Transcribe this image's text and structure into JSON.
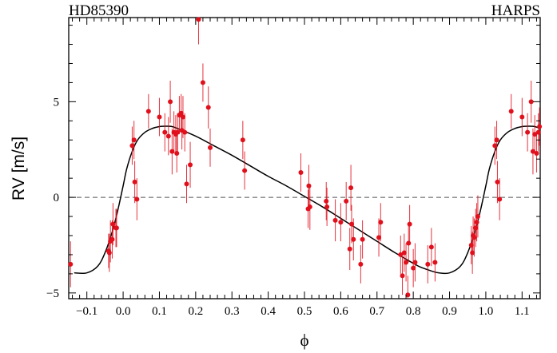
{
  "chart_data": {
    "type": "scatter",
    "title_left": "HD85390",
    "title_right": "HARPS",
    "xlabel": "ϕ",
    "ylabel": "RV [m/s]",
    "xlim": [
      -0.15,
      1.15
    ],
    "ylim": [
      -5.3,
      9.4
    ],
    "x_ticks": [
      -0.1,
      0.0,
      0.1,
      0.2,
      0.3,
      0.4,
      0.5,
      0.6,
      0.7,
      0.8,
      0.9,
      1.0,
      1.1
    ],
    "x_tick_labels": [
      "−0.1",
      "0.0",
      "0.1",
      "0.2",
      "0.3",
      "0.4",
      "0.5",
      "0.6",
      "0.7",
      "0.8",
      "0.9",
      "1.0",
      "1.1"
    ],
    "y_ticks": [
      -5,
      0,
      5
    ],
    "y_tick_labels": [
      "−5",
      "0",
      "5"
    ],
    "reference_line": {
      "y": 0,
      "style": "dashed"
    },
    "model_curve": {
      "name": "Keplerian fit",
      "x": [
        -0.135,
        -0.1,
        -0.07,
        -0.05,
        -0.03,
        -0.015,
        0.0,
        0.01,
        0.025,
        0.04,
        0.06,
        0.08,
        0.1,
        0.12,
        0.135,
        0.15,
        0.2,
        0.25,
        0.3,
        0.35,
        0.4,
        0.45,
        0.5,
        0.55,
        0.6,
        0.65,
        0.7,
        0.75,
        0.8,
        0.82,
        0.85,
        0.87,
        0.9,
        0.93,
        0.95,
        0.97,
        0.985,
        1.0,
        1.01,
        1.025,
        1.04,
        1.06,
        1.08,
        1.1,
        1.12,
        1.135,
        1.15
      ],
      "y": [
        -3.95,
        -3.95,
        -3.6,
        -2.9,
        -1.8,
        -0.7,
        0.6,
        1.5,
        2.4,
        3.0,
        3.4,
        3.6,
        3.7,
        3.72,
        3.7,
        3.6,
        3.2,
        2.7,
        2.2,
        1.65,
        1.1,
        0.6,
        0.05,
        -0.5,
        -1.1,
        -1.7,
        -2.3,
        -2.9,
        -3.45,
        -3.65,
        -3.85,
        -3.95,
        -3.95,
        -3.6,
        -2.9,
        -1.8,
        -0.7,
        0.6,
        1.5,
        2.4,
        3.0,
        3.4,
        3.6,
        3.7,
        3.72,
        3.7,
        3.6
      ]
    },
    "series": [
      {
        "name": "HARPS RV",
        "color": "#e0101c",
        "x": [
          -0.145,
          -0.04,
          -0.038,
          -0.035,
          -0.03,
          -0.028,
          -0.02,
          -0.018,
          0.025,
          0.03,
          0.032,
          0.038,
          0.07,
          0.1,
          0.115,
          0.125,
          0.13,
          0.135,
          0.14,
          0.145,
          0.148,
          0.15,
          0.155,
          0.16,
          0.162,
          0.165,
          0.17,
          0.175,
          0.185,
          0.208,
          0.22,
          0.235,
          0.24,
          0.33,
          0.335,
          0.49,
          0.51,
          0.512,
          0.515,
          0.56,
          0.562,
          0.585,
          0.6,
          0.615,
          0.625,
          0.628,
          0.63,
          0.635,
          0.655,
          0.66,
          0.705,
          0.71,
          0.765,
          0.77,
          0.775,
          0.78,
          0.785,
          0.787,
          0.79,
          0.8,
          0.805,
          0.84,
          0.85,
          0.86,
          0.96,
          0.963,
          0.965,
          0.968,
          0.972,
          0.975,
          0.978,
          1.025,
          1.03,
          1.032,
          1.038,
          1.07,
          1.1,
          1.115,
          1.125,
          1.13,
          1.135,
          1.14,
          1.145,
          1.148
        ],
        "y": [
          -3.5,
          -2.8,
          -2.9,
          -2.3,
          -2.2,
          -1.4,
          -1.6,
          -1.6,
          2.7,
          3.0,
          0.8,
          -0.1,
          4.5,
          4.2,
          3.4,
          3.2,
          5.0,
          2.4,
          3.4,
          3.3,
          2.3,
          3.4,
          4.3,
          4.4,
          3.5,
          4.2,
          3.4,
          0.7,
          1.7,
          9.3,
          6.0,
          4.7,
          2.6,
          3.0,
          1.4,
          1.3,
          -0.6,
          0.6,
          -0.5,
          -0.2,
          -0.5,
          -1.2,
          -1.3,
          -0.2,
          -2.7,
          0.5,
          -1.4,
          -2.2,
          -3.5,
          -2.2,
          -2.1,
          -1.3,
          -3.0,
          -4.1,
          -2.9,
          -3.4,
          -5.1,
          -2.4,
          -1.4,
          -3.7,
          -3.4,
          -3.5,
          -2.6,
          -3.4,
          -2.5,
          -2.9,
          -2.0,
          -2.1,
          -1.6,
          -1.3,
          -1.0,
          2.7,
          3.0,
          0.8,
          -0.1,
          4.5,
          4.2,
          3.4,
          5.0,
          2.4,
          3.3,
          2.3,
          3.4,
          3.7
        ],
        "err": [
          1.2,
          0.9,
          1.0,
          1.1,
          1.0,
          1.1,
          1.0,
          1.0,
          1.0,
          1.0,
          1.1,
          1.1,
          0.9,
          1.0,
          1.0,
          1.0,
          1.1,
          1.2,
          1.1,
          1.0,
          1.0,
          1.0,
          1.0,
          1.0,
          1.0,
          1.1,
          1.0,
          1.0,
          1.2,
          1.3,
          1.0,
          1.1,
          1.0,
          1.0,
          1.0,
          1.0,
          1.0,
          1.1,
          1.2,
          1.0,
          1.0,
          1.1,
          1.0,
          1.0,
          1.1,
          1.2,
          1.0,
          1.1,
          1.0,
          1.0,
          1.0,
          1.0,
          1.0,
          1.0,
          1.0,
          1.0,
          1.0,
          1.0,
          1.0,
          1.0,
          1.0,
          1.0,
          1.0,
          1.0,
          1.0,
          1.1,
          1.0,
          1.0,
          1.0,
          1.0,
          1.1,
          1.0,
          1.0,
          1.1,
          1.1,
          0.9,
          1.0,
          1.0,
          1.1,
          1.2,
          1.0,
          1.0,
          1.0,
          1.0
        ]
      }
    ]
  }
}
